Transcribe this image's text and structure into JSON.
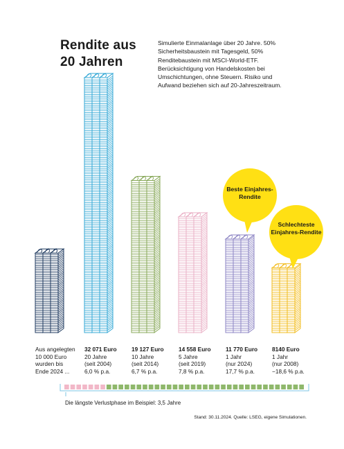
{
  "title": "Rendite aus 20 Jahren",
  "description": "Simulierte Einmalanlage über 20 Jahre. 50% Sicherheitsbaustein mit Tagesgeld, 50% Renditebaustein mit MSCI-World-ETF. Berücksichtigung von Handelskosten bei Umschichtungen, ohne Steuern. Risiko und Aufwand beziehen sich auf 20-Jahreszeitraum.",
  "bubbles": {
    "best": "Beste Einjahres-Rendite",
    "worst": "Schlechteste Einjahres-Rendite"
  },
  "caption": "Die längste Verlustphase im Beispiel: 3,5 Jahre",
  "source": "Stand: 30.11.2024. Quelle: LSEG, eigene Simulationen.",
  "colors": {
    "invested": "#1f3a5f",
    "y20": "#35a8d6",
    "y10": "#88a85a",
    "y5": "#eab0c6",
    "best1y": "#8e86c4",
    "worst1y": "#f2bc1f",
    "bubble": "#ffe014",
    "loss_segment": "#f2b8c8",
    "gain_segment": "#8fb86b"
  },
  "timeline": {
    "loss_years": 3.5,
    "total_years": 20
  },
  "chart_data": {
    "type": "bar",
    "unit": "Euro",
    "categories": [
      "Aus angelegten 10 000 Euro wurden bis Ende 2024 ...",
      "20 Jahre (seit 2004)",
      "10 Jahre (seit 2014)",
      "5 Jahre (seit 2019)",
      "1 Jahr (nur 2024)",
      "1 Jahr (nur 2008)"
    ],
    "values": [
      10000,
      32071,
      19127,
      14558,
      11770,
      8140
    ],
    "labels": [
      {
        "lines": [
          "Aus angelegten",
          "10 000 Euro",
          "wurden bis",
          "Ende 2024 ..."
        ]
      },
      {
        "value": "32 071 Euro",
        "lines": [
          "20 Jahre",
          "(seit 2004)",
          "6,0 % p.a."
        ]
      },
      {
        "value": "19 127 Euro",
        "lines": [
          "10 Jahre",
          "(seit 2014)",
          "6,7 % p.a."
        ]
      },
      {
        "value": "14 558 Euro",
        "lines": [
          "5 Jahre",
          "(seit 2019)",
          "7,8 % p.a."
        ]
      },
      {
        "value": "11 770 Euro",
        "lines": [
          "1 Jahr",
          "(nur 2024)",
          "17,7 % p.a."
        ]
      },
      {
        "value": "8140 Euro",
        "lines": [
          "1 Jahr",
          "(nur 2008)",
          "−18,6 % p.a."
        ]
      }
    ]
  }
}
